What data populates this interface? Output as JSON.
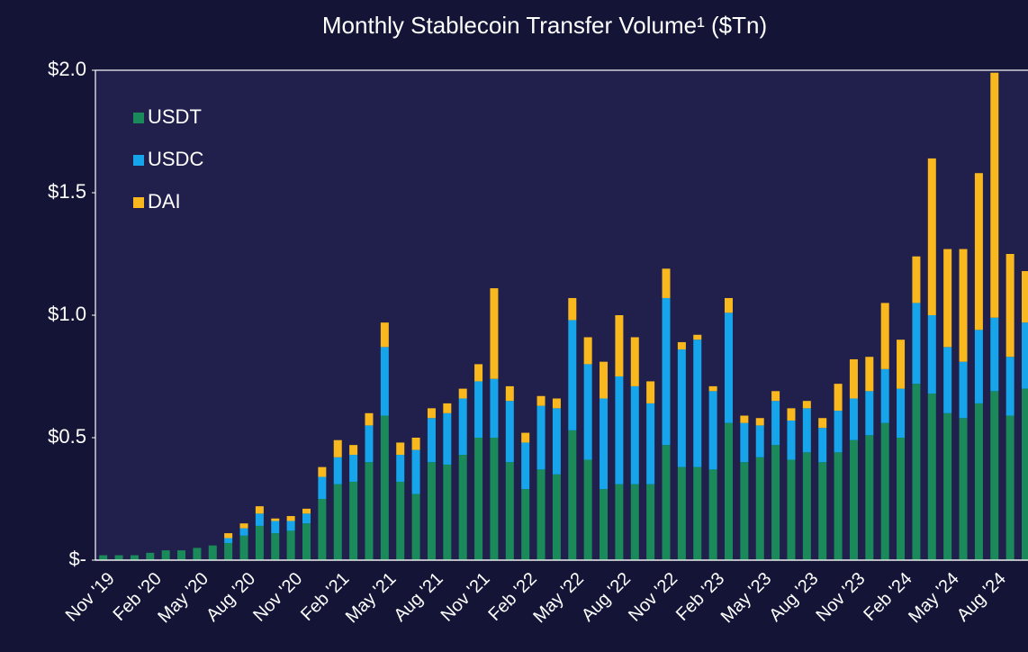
{
  "chart_data": {
    "type": "stacked_bar",
    "title": "Monthly Stablecoin Transfer Volume¹ ($Tn)",
    "categories": [
      "Nov '19",
      null,
      null,
      "Feb '20",
      null,
      null,
      "May '20",
      null,
      null,
      "Aug '20",
      null,
      null,
      "Nov '20",
      null,
      null,
      "Feb '21",
      null,
      null,
      "May '21",
      null,
      null,
      "Aug '21",
      null,
      null,
      "Nov '21",
      null,
      null,
      "Feb '22",
      null,
      null,
      "May '22",
      null,
      null,
      "Aug '22",
      null,
      null,
      "Nov '22",
      null,
      null,
      "Feb '23",
      null,
      null,
      "May '23",
      null,
      null,
      "Aug '23",
      null,
      null,
      "Nov '23",
      null,
      null,
      "Feb '24",
      null,
      null,
      "May '24",
      null,
      null,
      "Aug '24",
      null,
      null
    ],
    "series": [
      {
        "name": "USDT",
        "color": "#1b8a5a",
        "values": [
          0.02,
          0.02,
          0.02,
          0.03,
          0.04,
          0.04,
          0.05,
          0.06,
          0.07,
          0.1,
          0.14,
          0.11,
          0.12,
          0.15,
          0.25,
          0.31,
          0.32,
          0.4,
          0.59,
          0.32,
          0.27,
          0.4,
          0.39,
          0.43,
          0.5,
          0.5,
          0.4,
          0.29,
          0.37,
          0.35,
          0.53,
          0.41,
          0.29,
          0.31,
          0.31,
          0.31,
          0.47,
          0.38,
          0.38,
          0.37,
          0.56,
          0.4,
          0.42,
          0.47,
          0.41,
          0.44,
          0.4,
          0.44,
          0.49,
          0.51,
          0.56,
          0.5,
          0.72,
          0.68,
          0.6,
          0.58,
          0.64,
          0.69,
          0.59,
          0.7
        ]
      },
      {
        "name": "USDC",
        "color": "#16a5ea",
        "values": [
          0,
          0,
          0,
          0,
          0,
          0,
          0,
          0,
          0.02,
          0.03,
          0.05,
          0.05,
          0.04,
          0.04,
          0.09,
          0.11,
          0.11,
          0.15,
          0.28,
          0.11,
          0.18,
          0.18,
          0.21,
          0.23,
          0.23,
          0.24,
          0.25,
          0.19,
          0.26,
          0.27,
          0.45,
          0.39,
          0.37,
          0.44,
          0.4,
          0.33,
          0.6,
          0.48,
          0.52,
          0.32,
          0.45,
          0.16,
          0.13,
          0.18,
          0.16,
          0.18,
          0.14,
          0.17,
          0.17,
          0.18,
          0.22,
          0.2,
          0.33,
          0.32,
          0.27,
          0.23,
          0.3,
          0.3,
          0.24,
          0.27
        ]
      },
      {
        "name": "DAI",
        "color": "#f9b91e",
        "values": [
          0,
          0,
          0,
          0,
          0,
          0,
          0,
          0,
          0.02,
          0.02,
          0.03,
          0.01,
          0.02,
          0.02,
          0.04,
          0.07,
          0.04,
          0.05,
          0.1,
          0.05,
          0.05,
          0.04,
          0.04,
          0.04,
          0.07,
          0.37,
          0.06,
          0.04,
          0.04,
          0.04,
          0.09,
          0.11,
          0.15,
          0.25,
          0.2,
          0.09,
          0.12,
          0.03,
          0.02,
          0.02,
          0.06,
          0.03,
          0.03,
          0.04,
          0.05,
          0.03,
          0.04,
          0.11,
          0.16,
          0.14,
          0.27,
          0.2,
          0.19,
          0.64,
          0.4,
          0.46,
          0.64,
          1.0,
          0.42,
          0.21
        ]
      }
    ],
    "ylim": [
      0,
      2
    ],
    "yticks": [
      {
        "value": 0,
        "label": "$-"
      },
      {
        "value": 0.5,
        "label": "$0.5"
      },
      {
        "value": 1,
        "label": "$1.0"
      },
      {
        "value": 1.5,
        "label": "$1.5"
      },
      {
        "value": 2,
        "label": "$2.0"
      }
    ],
    "legend": "upper left"
  }
}
